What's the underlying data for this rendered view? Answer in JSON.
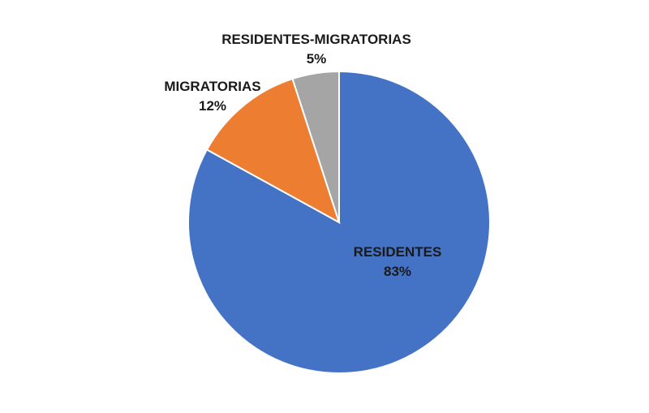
{
  "chart_data": {
    "type": "pie",
    "title": "",
    "slices": [
      {
        "label": "RESIDENTES",
        "value": 83,
        "value_label": "83%",
        "color": "#4472C4"
      },
      {
        "label": "MIGRATORIAS",
        "value": 12,
        "value_label": "12%",
        "color": "#ED7D31"
      },
      {
        "label": "RESIDENTES-MIGRATORIAS",
        "value": 5,
        "value_label": "5%",
        "color": "#A5A5A5"
      }
    ],
    "start": "12 o'clock",
    "direction": "clockwise",
    "legend": "none",
    "data_labels": "category name and percentage"
  }
}
